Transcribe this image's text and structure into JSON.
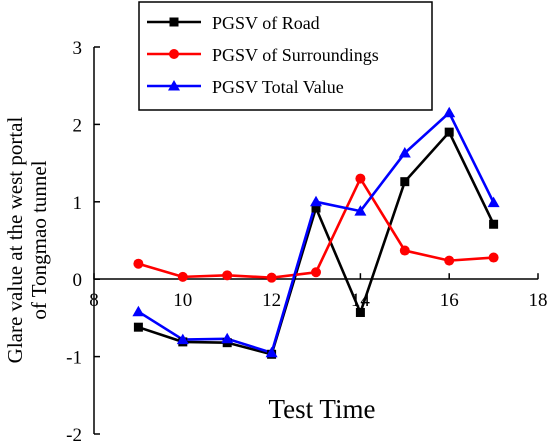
{
  "chart_data": {
    "type": "line",
    "xlabel": "Test Time",
    "ylabel_lines": [
      "Glare value at the west portal",
      "of Tongmao tunnel"
    ],
    "xlim": [
      8,
      18
    ],
    "ylim": [
      -2,
      3
    ],
    "xticks": [
      8,
      10,
      12,
      14,
      16,
      18
    ],
    "yticks": [
      -2,
      -1,
      0,
      1,
      2,
      3
    ],
    "xtick_labels": [
      "8",
      "10",
      "12",
      "14",
      "16",
      "18"
    ],
    "ytick_labels": [
      "-2",
      "-1",
      "0",
      "1",
      "2",
      "3"
    ],
    "grid": false,
    "legend_position": "top-center",
    "x": [
      9,
      10,
      11,
      12,
      13,
      14,
      15,
      16,
      17
    ],
    "series": [
      {
        "name": "PGSV of Road",
        "color": "#000000",
        "marker": "square",
        "values": [
          -0.62,
          -0.81,
          -0.82,
          -0.97,
          0.92,
          -0.43,
          1.26,
          1.9,
          0.71
        ]
      },
      {
        "name": "PGSV of Surroundings",
        "color": "#ff0000",
        "marker": "circle",
        "values": [
          0.2,
          0.03,
          0.05,
          0.02,
          0.09,
          1.3,
          0.37,
          0.24,
          0.28
        ]
      },
      {
        "name": "PGSV Total Value",
        "color": "#0000ff",
        "marker": "triangle",
        "values": [
          -0.42,
          -0.78,
          -0.77,
          -0.95,
          1.0,
          0.88,
          1.63,
          2.15,
          0.99
        ]
      }
    ]
  }
}
